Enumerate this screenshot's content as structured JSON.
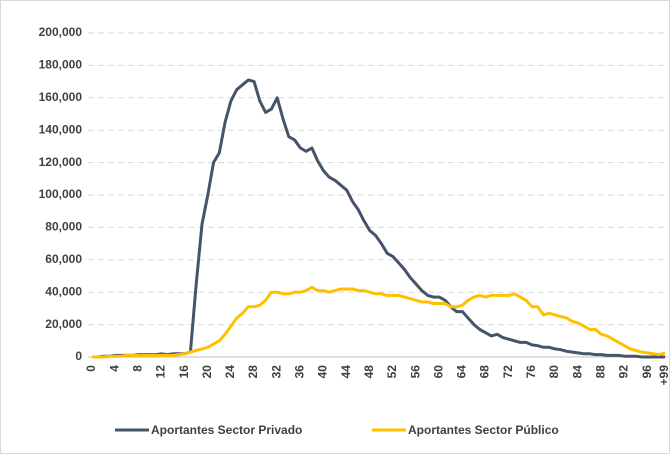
{
  "chart_data": {
    "type": "line",
    "categories": [
      "0",
      null,
      null,
      null,
      "4",
      null,
      null,
      null,
      "8",
      null,
      null,
      null,
      "12",
      null,
      null,
      null,
      "16",
      null,
      null,
      null,
      "20",
      null,
      null,
      null,
      "24",
      null,
      null,
      null,
      "28",
      null,
      null,
      null,
      "32",
      null,
      null,
      null,
      "36",
      null,
      null,
      null,
      "40",
      null,
      null,
      null,
      "44",
      null,
      null,
      null,
      "48",
      null,
      null,
      null,
      "52",
      null,
      null,
      null,
      "56",
      null,
      null,
      null,
      "60",
      null,
      null,
      null,
      "64",
      null,
      null,
      null,
      "68",
      null,
      null,
      null,
      "72",
      null,
      null,
      null,
      "76",
      null,
      null,
      null,
      "80",
      null,
      null,
      null,
      "84",
      null,
      null,
      null,
      "88",
      null,
      null,
      null,
      "92",
      null,
      null,
      null,
      "96",
      null,
      null,
      "+99"
    ],
    "series": [
      {
        "name": "Aportantes Sector Privado",
        "color": "#44546a",
        "values": [
          0,
          0,
          500,
          500,
          1000,
          1000,
          1000,
          1000,
          1500,
          1500,
          1500,
          1500,
          2000,
          1500,
          2000,
          2000,
          2000,
          3000,
          45000,
          82000,
          100000,
          120000,
          126000,
          145000,
          158000,
          165000,
          168000,
          171000,
          170000,
          158000,
          151000,
          153000,
          160000,
          147000,
          136000,
          134000,
          129000,
          127000,
          129000,
          121000,
          115000,
          111000,
          109000,
          106000,
          103000,
          96000,
          91000,
          84000,
          78000,
          75000,
          70000,
          64000,
          62000,
          58000,
          54000,
          49000,
          45000,
          41000,
          38000,
          37000,
          37000,
          35000,
          31000,
          28000,
          28000,
          24000,
          20000,
          17000,
          15000,
          13000,
          14000,
          12000,
          11000,
          10000,
          9000,
          9000,
          7500,
          7000,
          6000,
          6000,
          5000,
          4500,
          3500,
          3000,
          2500,
          2000,
          2000,
          1500,
          1500,
          1000,
          1000,
          1000,
          500,
          500,
          500,
          0,
          0,
          0,
          0,
          0
        ]
      },
      {
        "name": "Aportantes Sector Público",
        "color": "#ffc000",
        "values": [
          0,
          0,
          0,
          500,
          500,
          500,
          1000,
          1000,
          1000,
          1000,
          1000,
          1000,
          1000,
          1000,
          1000,
          1500,
          2000,
          3000,
          4000,
          5000,
          6000,
          8000,
          10000,
          14000,
          19000,
          24000,
          27000,
          31000,
          31000,
          32000,
          35000,
          40000,
          40000,
          39000,
          39000,
          40000,
          40000,
          41000,
          43000,
          41000,
          41000,
          40000,
          41000,
          42000,
          42000,
          42000,
          41000,
          41000,
          40000,
          39000,
          39000,
          38000,
          38000,
          38000,
          37000,
          36000,
          35000,
          34000,
          34000,
          33000,
          33000,
          33000,
          31000,
          31000,
          32000,
          35000,
          37000,
          38000,
          37000,
          38000,
          38000,
          38000,
          38000,
          39000,
          37000,
          35000,
          31000,
          31000,
          26000,
          27000,
          26000,
          25000,
          24000,
          22000,
          21000,
          19000,
          17000,
          17000,
          14000,
          13000,
          11000,
          9000,
          7000,
          5000,
          4000,
          3000,
          2500,
          2000,
          1500,
          2500
        ]
      }
    ],
    "ylim": [
      0,
      200000
    ],
    "yticks": [
      0,
      {
        "value": 20000,
        "label": "20,000"
      },
      {
        "value": 40000,
        "label": "40,000"
      },
      {
        "value": 60000,
        "label": "60,000"
      },
      {
        "value": 80000,
        "label": "80,000"
      },
      {
        "value": 100000,
        "label": "100,000"
      },
      {
        "value": 120000,
        "label": "120,000"
      },
      {
        "value": 140000,
        "label": "140,000"
      },
      {
        "value": 160000,
        "label": "160,000"
      },
      {
        "value": 180000,
        "label": "180,000"
      },
      {
        "value": 200000,
        "label": "200,000"
      }
    ],
    "grid": true,
    "legend": "bottom"
  }
}
